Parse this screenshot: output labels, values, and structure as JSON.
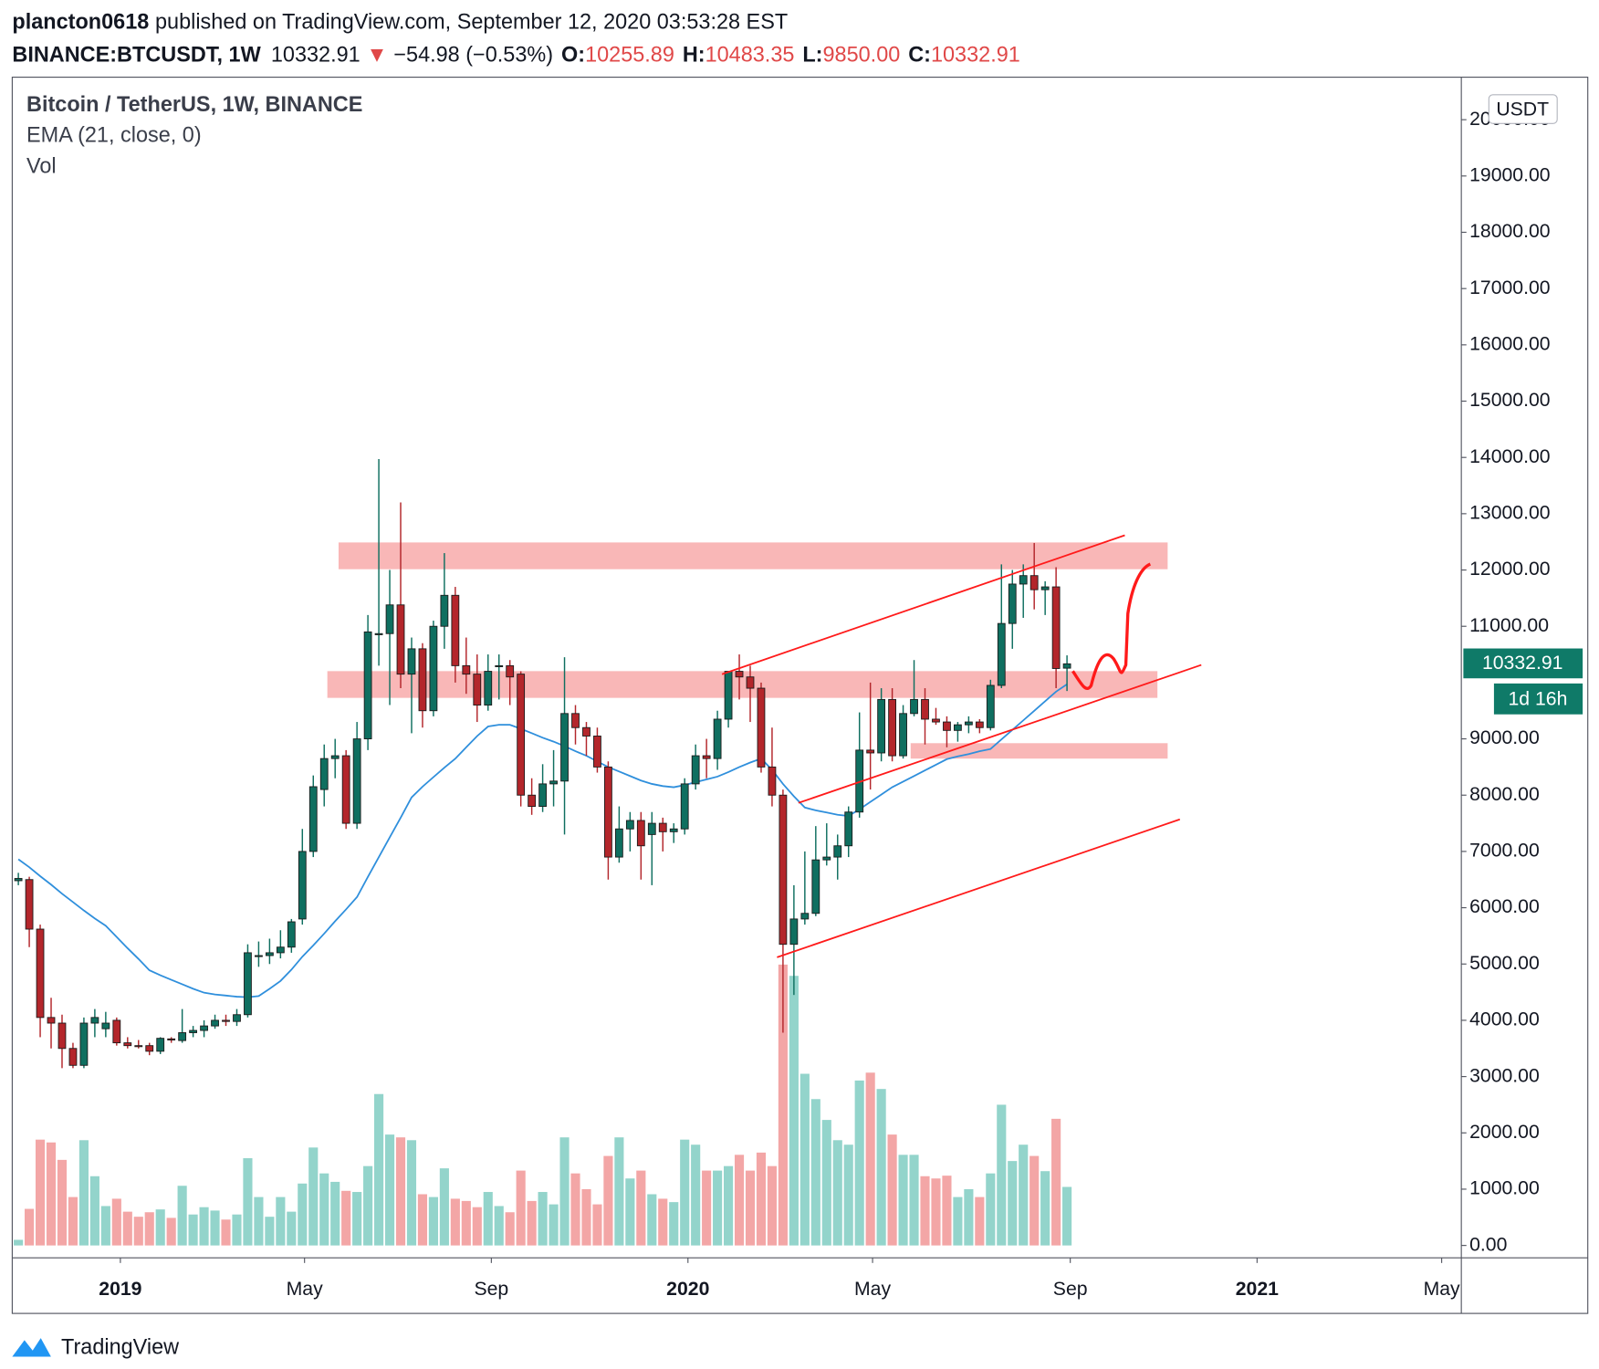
{
  "header": {
    "author": "plancton0618",
    "published": "published on TradingView.com, September 12, 2020 03:53:28 EST",
    "symbol": "BINANCE:BTCUSDT, 1W",
    "last": "10332.91",
    "arrow": "▼",
    "change": "−54.98 (−0.53%)",
    "o_label": "O:",
    "o": "10255.89",
    "h_label": "H:",
    "h": "10483.35",
    "l_label": "L:",
    "l": "9850.00",
    "c_label": "C:",
    "c": "10332.91"
  },
  "footer": "TradingView",
  "chart_data": {
    "type": "candlestick",
    "title": "Bitcoin / TetherUS, 1W, BINANCE",
    "indicators": [
      "EMA (21, close, 0)",
      "Vol"
    ],
    "currency": "USDT",
    "last_price_label": "10332.91",
    "countdown": "1d 16h",
    "up_color": "#0f6f60",
    "down_color": "#b3262b",
    "volume_up_color": "#93d4cb",
    "volume_down_color": "#f3a6a6",
    "ema_color": "#2f8fdc",
    "grid": false,
    "xlim": [
      -0.56,
      132.1
    ],
    "ylim": [
      -220,
      20755
    ],
    "xticks": [
      {
        "value": 9.34,
        "label": "2019"
      },
      {
        "value": 26.2,
        "label": "May"
      },
      {
        "value": 43.3,
        "label": "Sep"
      },
      {
        "value": 61.3,
        "label": "2020"
      },
      {
        "value": 78.2,
        "label": "May"
      },
      {
        "value": 96.3,
        "label": "Sep"
      },
      {
        "value": 113.4,
        "label": "2021"
      },
      {
        "value": 130.3,
        "label": "May"
      }
    ],
    "yticks": [
      {
        "value": 0,
        "label": "0.00"
      },
      {
        "value": 1000,
        "label": "1000.00"
      },
      {
        "value": 2000,
        "label": "2000.00"
      },
      {
        "value": 3000,
        "label": "3000.00"
      },
      {
        "value": 4000,
        "label": "4000.00"
      },
      {
        "value": 5000,
        "label": "5000.00"
      },
      {
        "value": 6000,
        "label": "6000.00"
      },
      {
        "value": 7000,
        "label": "7000.00"
      },
      {
        "value": 8000,
        "label": "8000.00"
      },
      {
        "value": 9000,
        "label": "9000.00"
      },
      {
        "value": 11000,
        "label": "11000.00"
      },
      {
        "value": 12000,
        "label": "12000.00"
      },
      {
        "value": 13000,
        "label": "13000.00"
      },
      {
        "value": 14000,
        "label": "14000.00"
      },
      {
        "value": 15000,
        "label": "15000.00"
      },
      {
        "value": 16000,
        "label": "16000.00"
      },
      {
        "value": 17000,
        "label": "17000.00"
      },
      {
        "value": 18000,
        "label": "18000.00"
      },
      {
        "value": 19000,
        "label": "19000.00"
      },
      {
        "value": 20000,
        "label": "20000.00"
      }
    ],
    "open": [
      6480,
      6500,
      5620,
      4050,
      3950,
      3500,
      3200,
      3950,
      3850,
      4000,
      3600,
      3550,
      3550,
      3450,
      3670,
      3640,
      3780,
      3820,
      3900,
      4000,
      3980,
      4100,
      5150,
      5150,
      5200,
      5300,
      5800,
      7000,
      8100,
      8650,
      8700,
      7500,
      9000,
      10850,
      10870,
      11380,
      10150,
      10600,
      9500,
      11000,
      11550,
      10300,
      10150,
      9600,
      10300,
      10300,
      10150,
      8000,
      7800,
      8200,
      8250,
      9450,
      9200,
      9050,
      8500,
      6900,
      7400,
      7550,
      7300,
      7500,
      7350,
      7400,
      8200,
      8700,
      8650,
      9350,
      10200,
      10100,
      9900,
      8500,
      8000,
      5350,
      5800,
      5900,
      6850,
      6900,
      7100,
      7700,
      8800,
      8750,
      9700,
      8700,
      9450,
      9700,
      9350,
      9300,
      9150,
      9250,
      9300,
      9200,
      9950,
      11050,
      11750,
      11900,
      11650,
      11700,
      10255.89
    ],
    "high": [
      6620,
      6550,
      5700,
      4400,
      4100,
      3600,
      4050,
      4200,
      4150,
      4050,
      3700,
      3650,
      3600,
      3700,
      3700,
      4200,
      3900,
      4000,
      4100,
      4100,
      4200,
      5350,
      5400,
      5450,
      5600,
      5800,
      7400,
      8350,
      8900,
      9000,
      8800,
      9300,
      11200,
      13970,
      12000,
      13200,
      10800,
      10700,
      11100,
      12300,
      11700,
      10800,
      10500,
      10500,
      10500,
      10400,
      10200,
      8300,
      8550,
      8800,
      10450,
      9600,
      9300,
      9200,
      8600,
      7800,
      7700,
      7700,
      7700,
      7600,
      7500,
      8300,
      8900,
      9000,
      9500,
      10200,
      10500,
      10300,
      10000,
      9200,
      8100,
      6400,
      7000,
      7450,
      7500,
      7300,
      7800,
      9470,
      10000,
      9900,
      9900,
      9600,
      10400,
      9900,
      9550,
      9400,
      9300,
      9400,
      9350,
      10050,
      12100,
      12000,
      12100,
      12480,
      11800,
      12050,
      10483.35
    ],
    "low": [
      6400,
      5300,
      3700,
      3500,
      3150,
      3150,
      3150,
      3700,
      3700,
      3550,
      3500,
      3500,
      3380,
      3400,
      3600,
      3600,
      3700,
      3700,
      3850,
      3900,
      3900,
      4050,
      4950,
      5000,
      5100,
      5200,
      5700,
      6900,
      7800,
      8300,
      7400,
      7400,
      8800,
      10300,
      9600,
      9900,
      9100,
      9200,
      9400,
      10600,
      10000,
      9800,
      9300,
      9500,
      9700,
      9600,
      7800,
      7650,
      7700,
      7800,
      7300,
      8900,
      8700,
      8400,
      6500,
      6800,
      7000,
      6500,
      6400,
      7000,
      7150,
      7300,
      8100,
      8300,
      8450,
      9200,
      9700,
      9300,
      8400,
      7800,
      3780,
      4450,
      5700,
      5850,
      6750,
      6500,
      6900,
      7600,
      8100,
      8600,
      8600,
      8650,
      9400,
      8900,
      9250,
      8850,
      8950,
      9100,
      9100,
      9150,
      9900,
      10600,
      11150,
      11300,
      11200,
      9900,
      9850
    ],
    "close": [
      6520,
      5620,
      4050,
      3950,
      3500,
      3200,
      3950,
      4050,
      3950,
      3600,
      3550,
      3540,
      3450,
      3680,
      3650,
      3780,
      3820,
      3900,
      4000,
      3980,
      4100,
      5200,
      5150,
      5200,
      5300,
      5750,
      7000,
      8150,
      8650,
      8700,
      7500,
      9000,
      10900,
      10870,
      11380,
      10150,
      10600,
      9500,
      11000,
      11550,
      10300,
      10150,
      9600,
      10200,
      10300,
      10100,
      8000,
      7800,
      8200,
      8250,
      9450,
      9200,
      9050,
      8500,
      6900,
      7400,
      7550,
      7100,
      7500,
      7350,
      7400,
      8200,
      8700,
      8650,
      9350,
      10200,
      10100,
      9900,
      8500,
      8000,
      5350,
      5800,
      5900,
      6850,
      6900,
      7100,
      7700,
      8800,
      8750,
      9700,
      8700,
      9450,
      9700,
      9350,
      9300,
      9150,
      9250,
      9300,
      9200,
      9950,
      11050,
      11750,
      11900,
      11650,
      11700,
      10250,
      10332.91
    ],
    "volume": [
      100,
      650,
      1880,
      1830,
      1520,
      860,
      1870,
      1230,
      700,
      830,
      600,
      510,
      590,
      640,
      490,
      1060,
      550,
      680,
      620,
      460,
      550,
      1550,
      860,
      510,
      860,
      600,
      1100,
      1740,
      1280,
      1130,
      970,
      950,
      1410,
      2690,
      1970,
      1920,
      1870,
      910,
      860,
      1370,
      830,
      790,
      680,
      950,
      700,
      590,
      1330,
      790,
      950,
      730,
      1920,
      1280,
      1000,
      730,
      1590,
      1920,
      1190,
      1330,
      910,
      830,
      770,
      1880,
      1790,
      1330,
      1330,
      1410,
      1610,
      1330,
      1650,
      1410,
      4990,
      4790,
      3050,
      2600,
      2230,
      1870,
      1790,
      2930,
      3070,
      2780,
      1970,
      1610,
      1610,
      1230,
      1190,
      1240,
      860,
      1000,
      860,
      1280,
      2500,
      1500,
      1790,
      1590,
      1320,
      2250,
      1040
    ],
    "ema": [
      6860,
      6720,
      6560,
      6410,
      6250,
      6100,
      5950,
      5810,
      5680,
      5480,
      5280,
      5090,
      4890,
      4800,
      4720,
      4640,
      4560,
      4490,
      4460,
      4440,
      4420,
      4410,
      4430,
      4560,
      4700,
      4900,
      5130,
      5330,
      5540,
      5760,
      5970,
      6190,
      6550,
      6900,
      7250,
      7600,
      7960,
      8150,
      8320,
      8490,
      8650,
      8850,
      9050,
      9220,
      9250,
      9250,
      9180,
      9100,
      9020,
      8950,
      8870,
      8780,
      8700,
      8600,
      8500,
      8420,
      8340,
      8260,
      8200,
      8160,
      8140,
      8180,
      8230,
      8280,
      8330,
      8410,
      8500,
      8580,
      8650,
      8450,
      8200,
      7980,
      7780,
      7730,
      7690,
      7650,
      7630,
      7750,
      7880,
      8010,
      8140,
      8240,
      8340,
      8440,
      8540,
      8640,
      8690,
      8730,
      8780,
      8820,
      8990,
      9160,
      9330,
      9500,
      9670,
      9840,
      9970
    ]
  }
}
